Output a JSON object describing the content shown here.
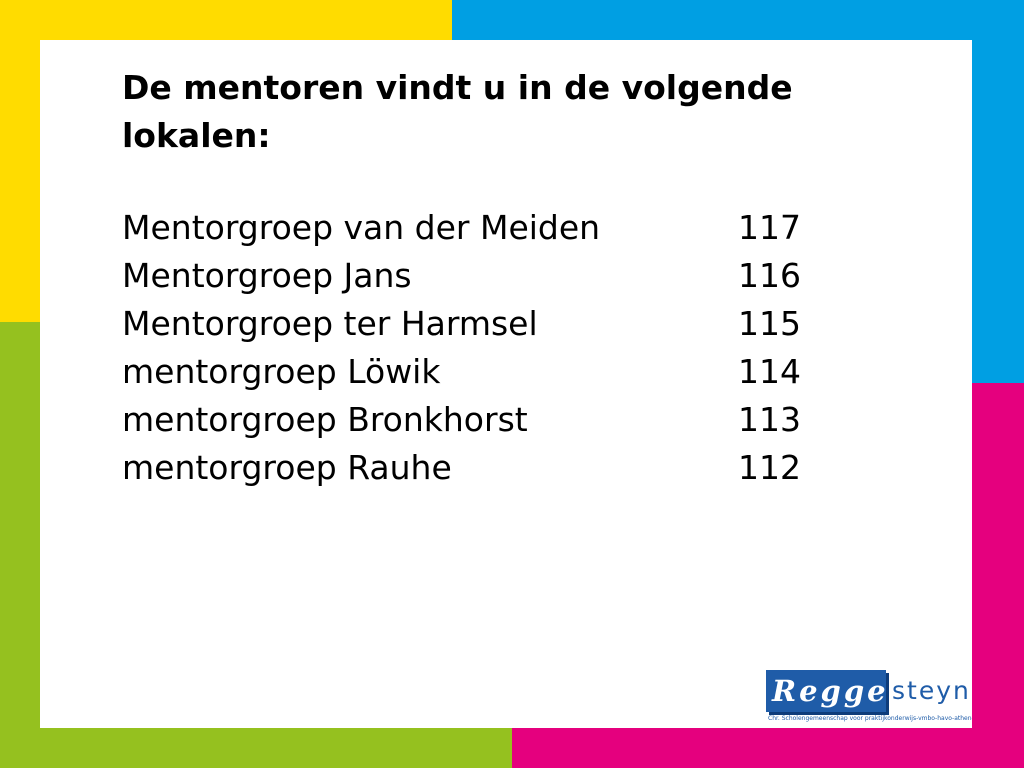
{
  "slide": {
    "title": "De mentoren vindt u in de volgende lokalen:",
    "rows": [
      {
        "group": "Mentorgroep van der Meiden",
        "room": "117"
      },
      {
        "group": "Mentorgroep Jans",
        "room": "116"
      },
      {
        "group": "Mentorgroep ter Harmsel",
        "room": "115"
      },
      {
        "group": "mentorgroep Löwik",
        "room": "114"
      },
      {
        "group": "mentorgroep Bronkhorst",
        "room": "113"
      },
      {
        "group": "mentorgroep Rauhe",
        "room": "112"
      }
    ]
  },
  "logo": {
    "part1": "Regge",
    "part2": "steyn",
    "tagline": "Chr. Scholengemeenschap voor praktijkonderwijs-vmbo-havo-atheneum"
  },
  "colors": {
    "yellow": "#FFDC00",
    "blue": "#009FE3",
    "green": "#95C11F",
    "pink": "#E5007E",
    "logo_blue": "#1F5CA8"
  }
}
